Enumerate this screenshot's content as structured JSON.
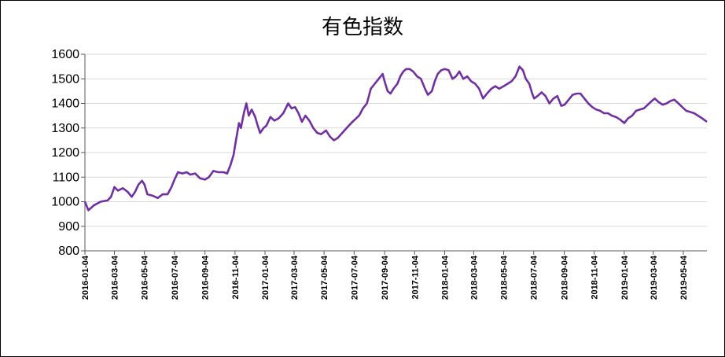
{
  "chart_data": {
    "type": "line",
    "title": "有色指数",
    "xlabel": "",
    "ylabel": "",
    "ylim": [
      800,
      1600
    ],
    "yticks": [
      800,
      900,
      1000,
      1100,
      1200,
      1300,
      1400,
      1500,
      1600
    ],
    "x_tick_labels": [
      "2016-01-04",
      "2016-03-04",
      "2016-05-04",
      "2016-07-04",
      "2016-09-04",
      "2016-11-04",
      "2017-01-04",
      "2017-03-04",
      "2017-05-04",
      "2017-07-04",
      "2017-09-04",
      "2017-11-04",
      "2018-01-04",
      "2018-03-04",
      "2018-05-04",
      "2018-07-04",
      "2018-09-04",
      "2018-11-04",
      "2019-01-04",
      "2019-03-04",
      "2019-05-04"
    ],
    "x_range": [
      "2016-01-04",
      "2019-06-21"
    ],
    "grid": "horizontal",
    "line_color": "#7030A0",
    "series": [
      {
        "points": [
          [
            "2016-01-04",
            1000
          ],
          [
            "2016-01-11",
            965
          ],
          [
            "2016-01-22",
            985
          ],
          [
            "2016-02-05",
            1000
          ],
          [
            "2016-02-19",
            1005
          ],
          [
            "2016-02-26",
            1020
          ],
          [
            "2016-03-04",
            1060
          ],
          [
            "2016-03-11",
            1045
          ],
          [
            "2016-03-21",
            1055
          ],
          [
            "2016-03-31",
            1040
          ],
          [
            "2016-04-08",
            1020
          ],
          [
            "2016-04-15",
            1040
          ],
          [
            "2016-04-22",
            1070
          ],
          [
            "2016-04-29",
            1085
          ],
          [
            "2016-05-04",
            1070
          ],
          [
            "2016-05-10",
            1030
          ],
          [
            "2016-05-20",
            1025
          ],
          [
            "2016-05-31",
            1015
          ],
          [
            "2016-06-10",
            1030
          ],
          [
            "2016-06-20",
            1030
          ],
          [
            "2016-06-28",
            1060
          ],
          [
            "2016-07-04",
            1090
          ],
          [
            "2016-07-11",
            1120
          ],
          [
            "2016-07-20",
            1115
          ],
          [
            "2016-07-29",
            1120
          ],
          [
            "2016-08-05",
            1110
          ],
          [
            "2016-08-15",
            1115
          ],
          [
            "2016-08-25",
            1095
          ],
          [
            "2016-09-04",
            1090
          ],
          [
            "2016-09-12",
            1100
          ],
          [
            "2016-09-21",
            1125
          ],
          [
            "2016-10-01",
            1120
          ],
          [
            "2016-10-12",
            1120
          ],
          [
            "2016-10-19",
            1115
          ],
          [
            "2016-10-26",
            1150
          ],
          [
            "2016-11-01",
            1190
          ],
          [
            "2016-11-06",
            1250
          ],
          [
            "2016-11-12",
            1320
          ],
          [
            "2016-11-16",
            1300
          ],
          [
            "2016-11-22",
            1360
          ],
          [
            "2016-11-27",
            1400
          ],
          [
            "2016-12-02",
            1350
          ],
          [
            "2016-12-08",
            1375
          ],
          [
            "2016-12-15",
            1345
          ],
          [
            "2016-12-20",
            1310
          ],
          [
            "2016-12-25",
            1280
          ],
          [
            "2017-01-01",
            1300
          ],
          [
            "2017-01-07",
            1310
          ],
          [
            "2017-01-15",
            1345
          ],
          [
            "2017-01-23",
            1330
          ],
          [
            "2017-02-01",
            1340
          ],
          [
            "2017-02-10",
            1360
          ],
          [
            "2017-02-20",
            1400
          ],
          [
            "2017-02-27",
            1380
          ],
          [
            "2017-03-06",
            1385
          ],
          [
            "2017-03-13",
            1360
          ],
          [
            "2017-03-20",
            1325
          ],
          [
            "2017-03-27",
            1350
          ],
          [
            "2017-04-04",
            1330
          ],
          [
            "2017-04-12",
            1300
          ],
          [
            "2017-04-20",
            1280
          ],
          [
            "2017-04-28",
            1275
          ],
          [
            "2017-05-08",
            1290
          ],
          [
            "2017-05-16",
            1265
          ],
          [
            "2017-05-24",
            1250
          ],
          [
            "2017-06-01",
            1260
          ],
          [
            "2017-06-10",
            1280
          ],
          [
            "2017-06-19",
            1300
          ],
          [
            "2017-06-28",
            1320
          ],
          [
            "2017-07-06",
            1335
          ],
          [
            "2017-07-14",
            1350
          ],
          [
            "2017-07-22",
            1380
          ],
          [
            "2017-07-30",
            1400
          ],
          [
            "2017-08-07",
            1460
          ],
          [
            "2017-08-15",
            1480
          ],
          [
            "2017-08-23",
            1500
          ],
          [
            "2017-08-31",
            1520
          ],
          [
            "2017-09-04",
            1490
          ],
          [
            "2017-09-10",
            1450
          ],
          [
            "2017-09-16",
            1440
          ],
          [
            "2017-09-22",
            1460
          ],
          [
            "2017-09-30",
            1480
          ],
          [
            "2017-10-06",
            1510
          ],
          [
            "2017-10-12",
            1530
          ],
          [
            "2017-10-18",
            1540
          ],
          [
            "2017-10-25",
            1540
          ],
          [
            "2017-11-01",
            1530
          ],
          [
            "2017-11-09",
            1510
          ],
          [
            "2017-11-17",
            1500
          ],
          [
            "2017-11-25",
            1460
          ],
          [
            "2017-12-01",
            1435
          ],
          [
            "2017-12-09",
            1450
          ],
          [
            "2017-12-15",
            1490
          ],
          [
            "2017-12-21",
            1520
          ],
          [
            "2017-12-28",
            1535
          ],
          [
            "2018-01-04",
            1540
          ],
          [
            "2018-01-12",
            1535
          ],
          [
            "2018-01-20",
            1500
          ],
          [
            "2018-01-27",
            1510
          ],
          [
            "2018-02-03",
            1530
          ],
          [
            "2018-02-11",
            1500
          ],
          [
            "2018-02-19",
            1510
          ],
          [
            "2018-02-27",
            1490
          ],
          [
            "2018-03-07",
            1480
          ],
          [
            "2018-03-15",
            1460
          ],
          [
            "2018-03-23",
            1420
          ],
          [
            "2018-03-31",
            1440
          ],
          [
            "2018-04-09",
            1460
          ],
          [
            "2018-04-17",
            1470
          ],
          [
            "2018-04-25",
            1460
          ],
          [
            "2018-05-04",
            1470
          ],
          [
            "2018-05-12",
            1480
          ],
          [
            "2018-05-20",
            1490
          ],
          [
            "2018-05-28",
            1510
          ],
          [
            "2018-06-05",
            1550
          ],
          [
            "2018-06-12",
            1535
          ],
          [
            "2018-06-18",
            1500
          ],
          [
            "2018-06-25",
            1480
          ],
          [
            "2018-07-01",
            1440
          ],
          [
            "2018-07-05",
            1420
          ],
          [
            "2018-07-12",
            1430
          ],
          [
            "2018-07-20",
            1445
          ],
          [
            "2018-07-28",
            1430
          ],
          [
            "2018-08-05",
            1400
          ],
          [
            "2018-08-13",
            1420
          ],
          [
            "2018-08-21",
            1430
          ],
          [
            "2018-08-29",
            1390
          ],
          [
            "2018-09-05",
            1395
          ],
          [
            "2018-09-13",
            1415
          ],
          [
            "2018-09-21",
            1435
          ],
          [
            "2018-09-29",
            1440
          ],
          [
            "2018-10-07",
            1440
          ],
          [
            "2018-10-15",
            1420
          ],
          [
            "2018-10-23",
            1400
          ],
          [
            "2018-10-31",
            1385
          ],
          [
            "2018-11-08",
            1375
          ],
          [
            "2018-11-16",
            1370
          ],
          [
            "2018-11-24",
            1360
          ],
          [
            "2018-12-02",
            1360
          ],
          [
            "2018-12-10",
            1350
          ],
          [
            "2018-12-18",
            1345
          ],
          [
            "2018-12-26",
            1335
          ],
          [
            "2019-01-04",
            1320
          ],
          [
            "2019-01-12",
            1340
          ],
          [
            "2019-01-20",
            1350
          ],
          [
            "2019-01-28",
            1370
          ],
          [
            "2019-02-05",
            1375
          ],
          [
            "2019-02-13",
            1380
          ],
          [
            "2019-02-21",
            1395
          ],
          [
            "2019-03-01",
            1410
          ],
          [
            "2019-03-07",
            1420
          ],
          [
            "2019-03-15",
            1405
          ],
          [
            "2019-03-23",
            1395
          ],
          [
            "2019-03-31",
            1400
          ],
          [
            "2019-04-08",
            1410
          ],
          [
            "2019-04-16",
            1415
          ],
          [
            "2019-04-24",
            1400
          ],
          [
            "2019-05-02",
            1385
          ],
          [
            "2019-05-10",
            1370
          ],
          [
            "2019-05-18",
            1365
          ],
          [
            "2019-05-26",
            1360
          ],
          [
            "2019-06-03",
            1350
          ],
          [
            "2019-06-11",
            1340
          ],
          [
            "2019-06-21",
            1325
          ]
        ]
      }
    ]
  }
}
